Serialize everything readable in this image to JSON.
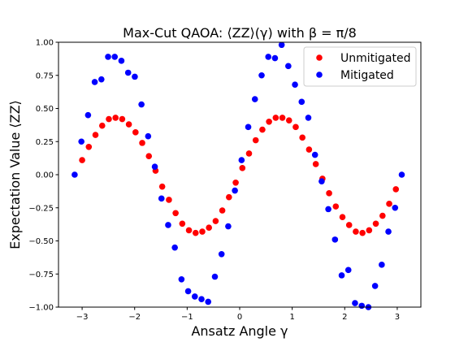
{
  "chart_data": {
    "type": "scatter",
    "title": "Max-Cut QAOA: ⟨ZZ⟩(γ) with β = π/8",
    "xlabel": "Ansatz Angle γ",
    "ylabel": "Expectation Value ⟨ZZ⟩",
    "xlim": [
      -3.45,
      3.45
    ],
    "ylim": [
      -1.0,
      1.0
    ],
    "x_ticks": [
      -3,
      -2,
      -1,
      0,
      1,
      2,
      3
    ],
    "x_tick_labels": [
      "−3",
      "−2",
      "−1",
      "0",
      "1",
      "2",
      "3"
    ],
    "y_ticks": [
      -1.0,
      -0.75,
      -0.5,
      -0.25,
      0.0,
      0.25,
      0.5,
      0.75,
      1.0
    ],
    "y_tick_labels": [
      "−1.00",
      "−0.75",
      "−0.50",
      "−0.25",
      "0.00",
      "0.25",
      "0.50",
      "0.75",
      "1.00"
    ],
    "grid": false,
    "legend_position": "top-right",
    "series": [
      {
        "name": "Unmitigated",
        "color": "#ff0000",
        "x": [
          -3.0,
          -2.873,
          -2.746,
          -2.618,
          -2.491,
          -2.364,
          -2.237,
          -2.11,
          -1.983,
          -1.856,
          -1.729,
          -1.602,
          -1.475,
          -1.347,
          -1.22,
          -1.093,
          -0.966,
          -0.839,
          -0.712,
          -0.585,
          -0.458,
          -0.331,
          -0.204,
          -0.076,
          0.051,
          0.178,
          0.305,
          0.432,
          0.559,
          0.686,
          0.813,
          0.94,
          1.067,
          1.194,
          1.321,
          1.449,
          1.576,
          1.703,
          1.83,
          1.957,
          2.084,
          2.211,
          2.338,
          2.465,
          2.592,
          2.72,
          2.847,
          2.974
        ],
        "y": [
          0.11,
          0.21,
          0.3,
          0.37,
          0.42,
          0.43,
          0.42,
          0.38,
          0.32,
          0.24,
          0.14,
          0.03,
          -0.09,
          -0.19,
          -0.29,
          -0.37,
          -0.42,
          -0.44,
          -0.43,
          -0.4,
          -0.35,
          -0.27,
          -0.17,
          -0.06,
          0.05,
          0.16,
          0.26,
          0.34,
          0.4,
          0.43,
          0.43,
          0.41,
          0.36,
          0.28,
          0.19,
          0.08,
          -0.03,
          -0.14,
          -0.24,
          -0.32,
          -0.38,
          -0.43,
          -0.44,
          -0.42,
          -0.37,
          -0.31,
          -0.22,
          -0.11
        ]
      },
      {
        "name": "Mitigated",
        "color": "#0000ff",
        "x": [
          -3.142,
          -3.014,
          -2.887,
          -2.76,
          -2.633,
          -2.506,
          -2.379,
          -2.252,
          -2.124,
          -1.997,
          -1.87,
          -1.743,
          -1.616,
          -1.489,
          -1.362,
          -1.235,
          -1.108,
          -0.981,
          -0.854,
          -0.727,
          -0.6,
          -0.472,
          -0.345,
          -0.218,
          -0.091,
          0.036,
          0.163,
          0.29,
          0.418,
          0.545,
          0.672,
          0.799,
          0.926,
          1.053,
          1.18,
          1.307,
          1.434,
          1.561,
          1.688,
          1.815,
          1.942,
          2.069,
          2.196,
          2.324,
          2.451,
          2.578,
          2.705,
          2.832,
          2.959,
          3.086
        ],
        "y": [
          0.0,
          0.25,
          0.45,
          0.7,
          0.72,
          0.89,
          0.89,
          0.86,
          0.77,
          0.74,
          0.53,
          0.29,
          0.06,
          -0.18,
          -0.38,
          -0.55,
          -0.79,
          -0.88,
          -0.92,
          -0.94,
          -0.96,
          -0.77,
          -0.6,
          -0.39,
          -0.12,
          0.11,
          0.36,
          0.57,
          0.75,
          0.89,
          0.88,
          0.98,
          0.82,
          0.68,
          0.55,
          0.43,
          0.15,
          -0.05,
          -0.26,
          -0.49,
          -0.76,
          -0.72,
          -0.97,
          -0.99,
          -1.01,
          -0.84,
          -0.68,
          -0.43,
          -0.25,
          0.0
        ]
      }
    ]
  }
}
